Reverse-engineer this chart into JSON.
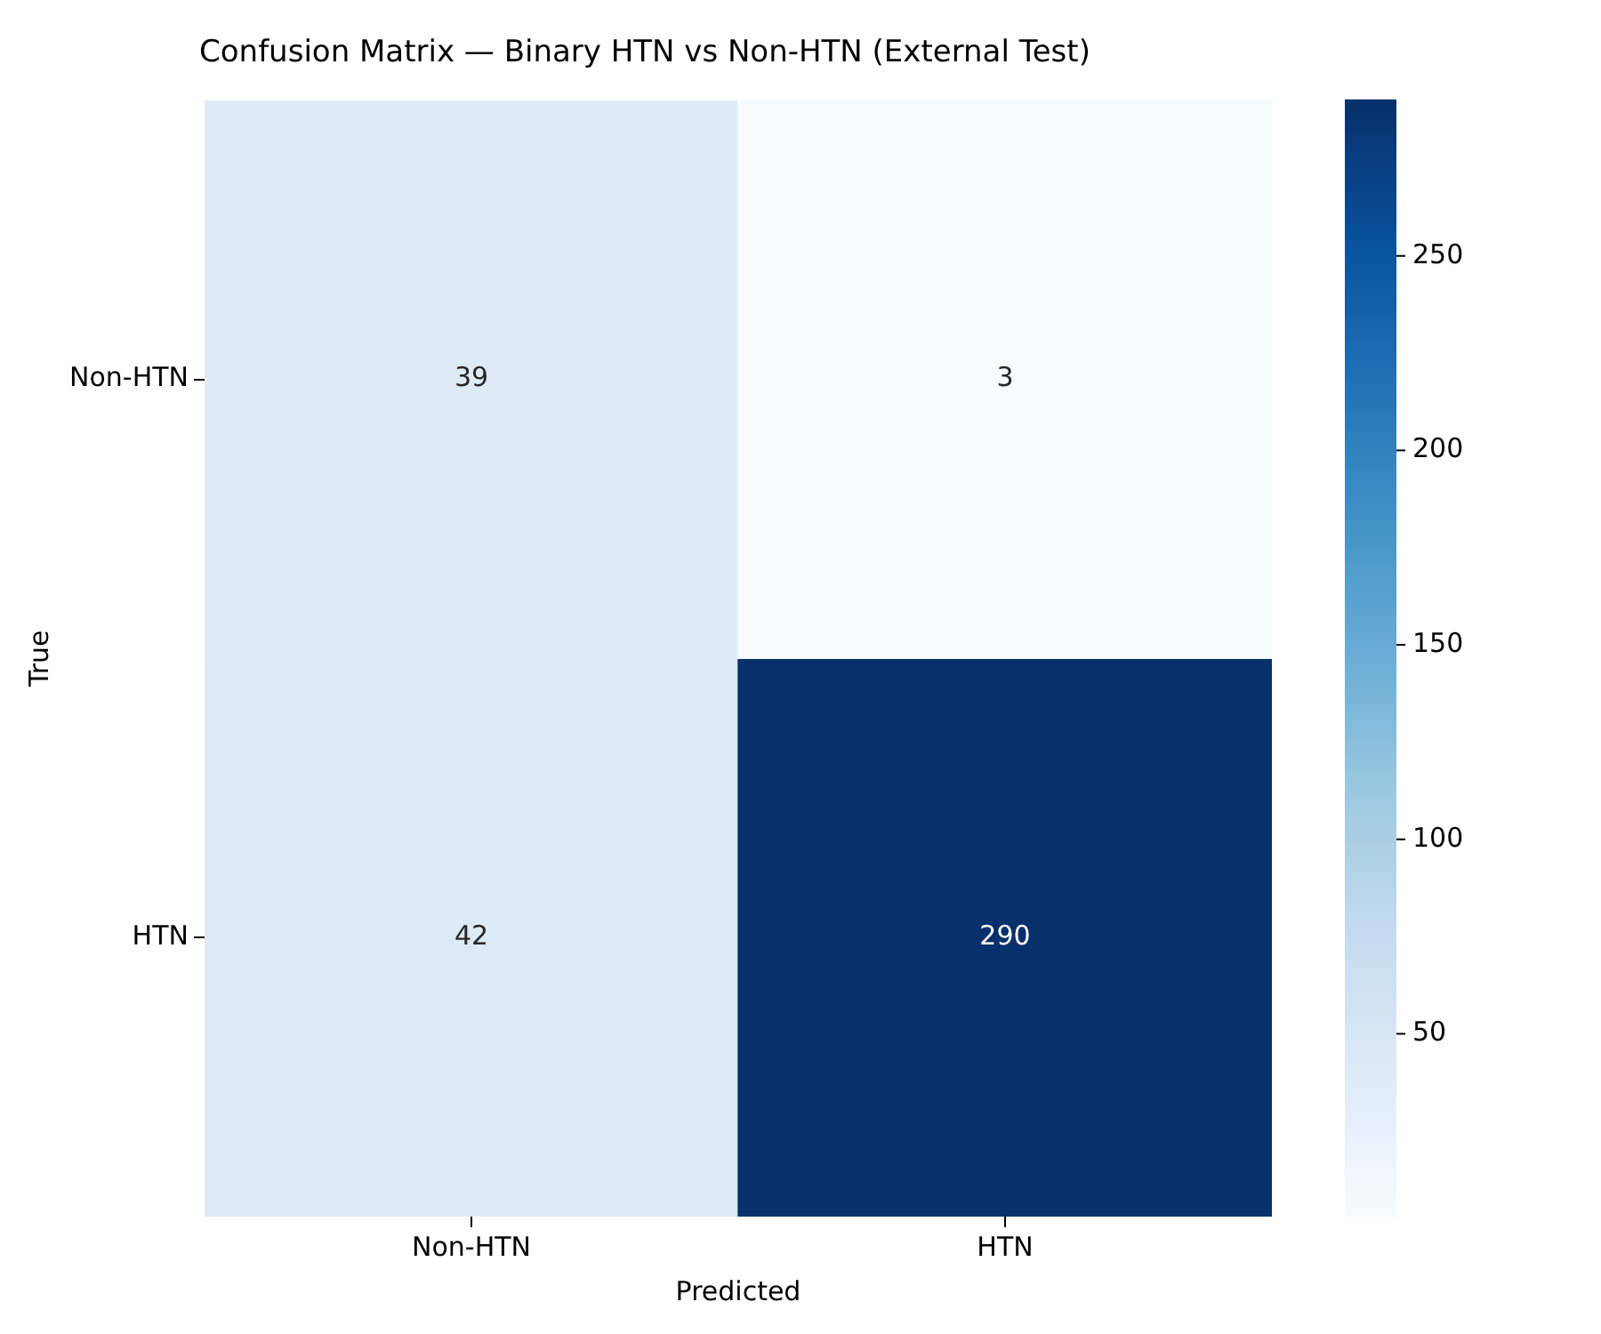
{
  "chart_data": {
    "type": "heatmap",
    "title": "Confusion Matrix — Binary HTN vs Non-HTN (External Test)",
    "xlabel": "Predicted",
    "ylabel": "True",
    "categories": [
      "Non-HTN",
      "HTN"
    ],
    "y_categories": [
      "Non-HTN",
      "HTN"
    ],
    "cells": [
      [
        39,
        3
      ],
      [
        42,
        290
      ]
    ],
    "clim": [
      3,
      290
    ],
    "cticks": [
      50,
      100,
      150,
      200,
      250
    ],
    "data_labels": true
  }
}
